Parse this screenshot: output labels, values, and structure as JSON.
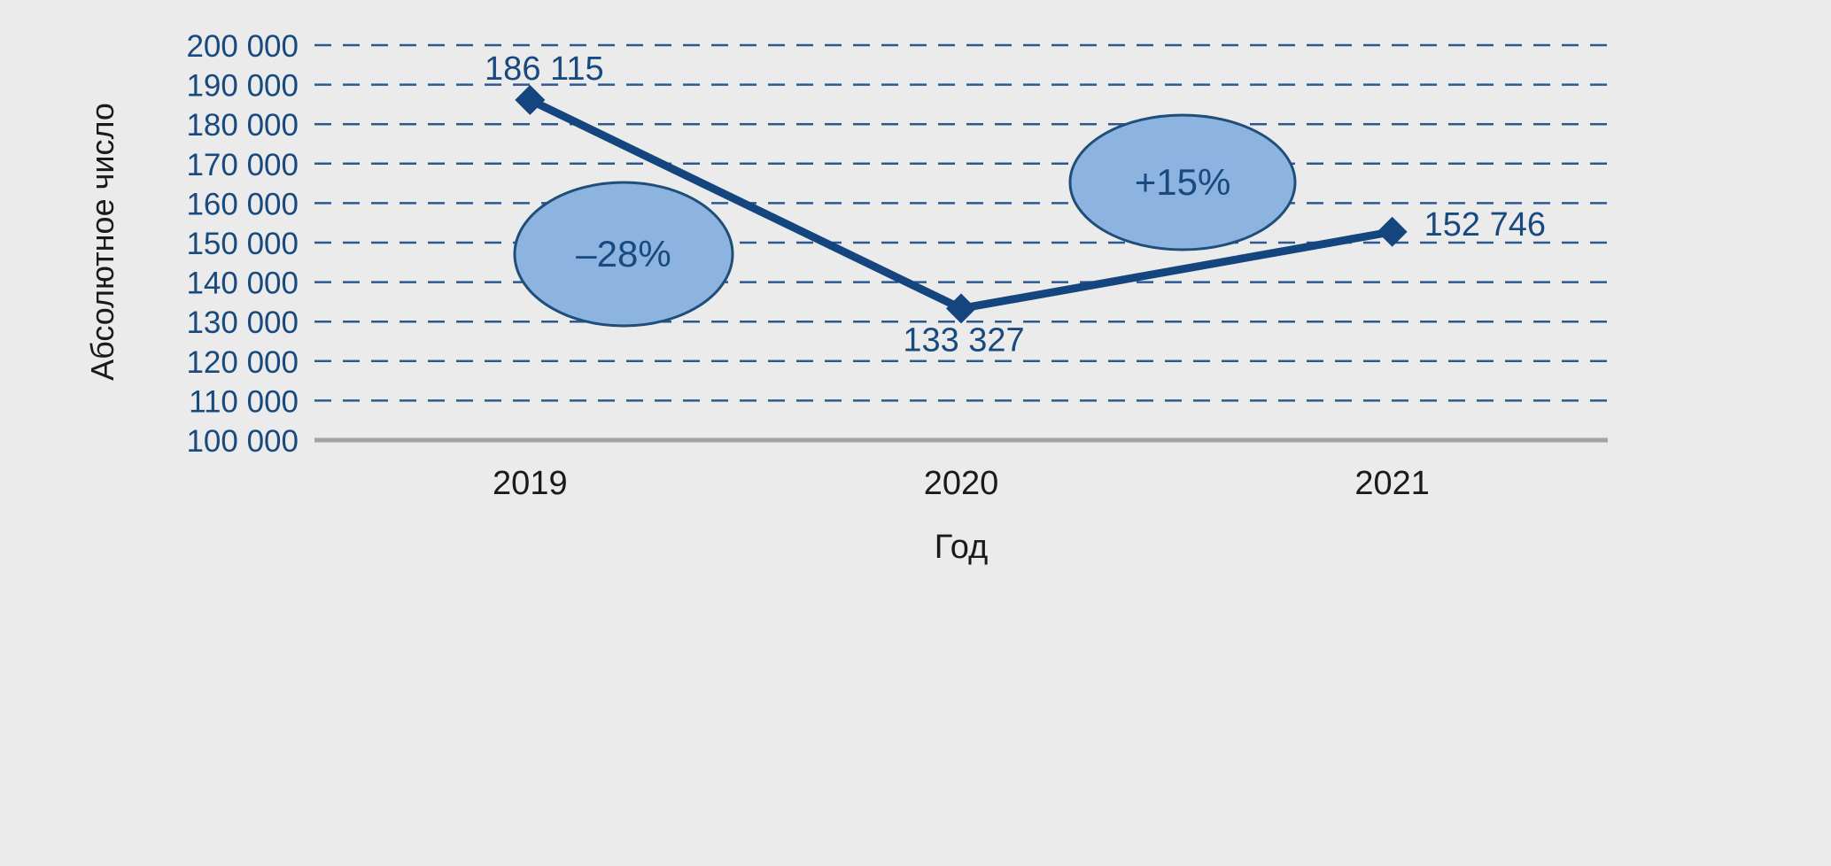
{
  "colors": {
    "background": "#EBEBEB",
    "accent_dark_blue": "#18497F",
    "series_line_blue": "#14457E",
    "gridline_blue": "#2D5892",
    "axis_gray": "#A3A3A3",
    "text_black": "#1A1A1A",
    "annotation_ellipse_fill": "#8DB4E0",
    "annotation_ellipse_stroke": "#1F4E79"
  },
  "chart_data": {
    "type": "line",
    "title": "",
    "xlabel": "Год",
    "ylabel": "Абсолютное число",
    "categories": [
      "2019",
      "2020",
      "2021"
    ],
    "series": [
      {
        "name": "Абсолютное число",
        "values": [
          186115,
          133327,
          152746
        ]
      }
    ],
    "point_labels": [
      "186 115",
      "133 327",
      "152 746"
    ],
    "annotations": [
      {
        "label": "–28%",
        "between": [
          "2019",
          "2020"
        ]
      },
      {
        "label": "+15%",
        "between": [
          "2020",
          "2021"
        ]
      }
    ],
    "ylim": [
      100000,
      200000
    ],
    "ytick_step": 10000,
    "yticks": [
      "100 000",
      "110 000",
      "120 000",
      "130 000",
      "140 000",
      "150 000",
      "160 000",
      "170 000",
      "180 000",
      "190 000",
      "200 000"
    ],
    "grid": "horizontal-dashed",
    "legend": "none",
    "marker": "diamond"
  }
}
